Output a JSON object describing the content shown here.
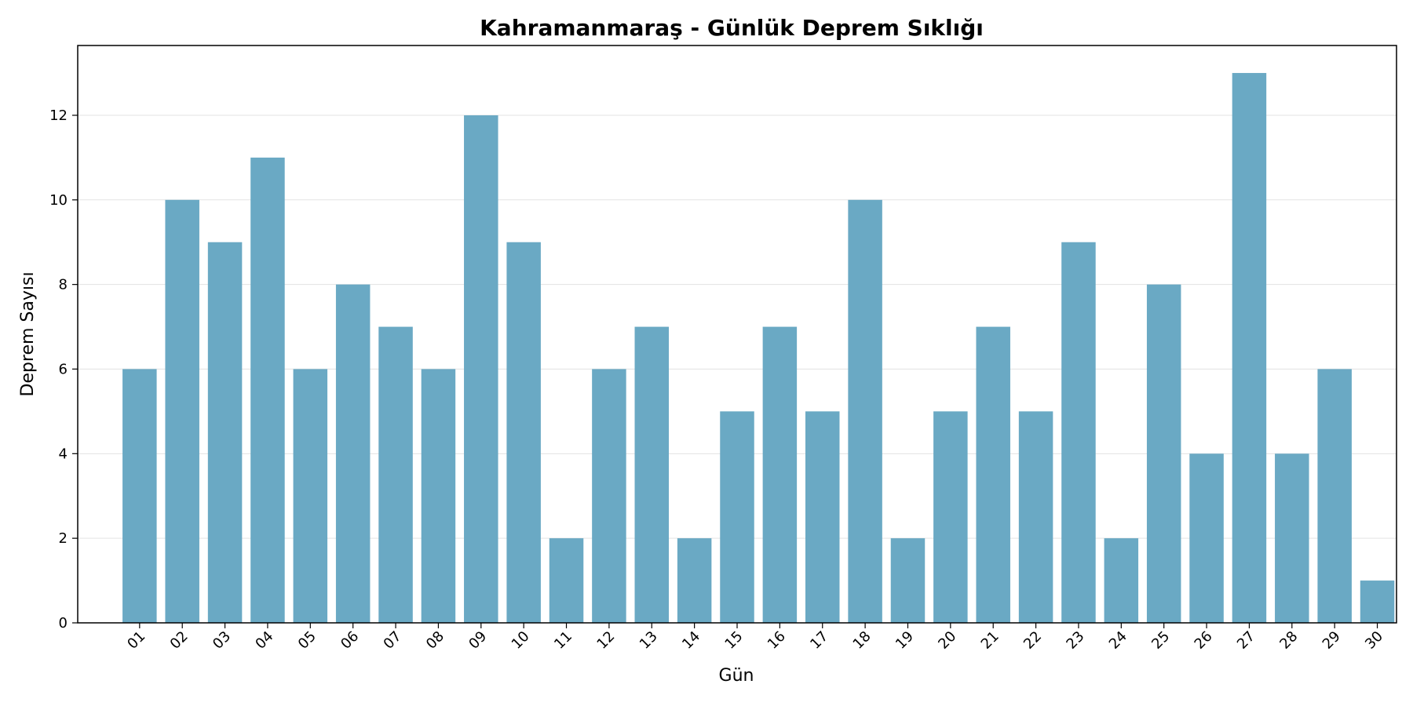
{
  "chart_data": {
    "type": "bar",
    "title": "Kahramanmaraş - Günlük Deprem Sıklığı",
    "xlabel": "Gün",
    "ylabel": "Deprem Sayısı",
    "categories": [
      "01",
      "02",
      "03",
      "04",
      "05",
      "06",
      "07",
      "08",
      "09",
      "10",
      "11",
      "12",
      "13",
      "14",
      "15",
      "16",
      "17",
      "18",
      "19",
      "20",
      "21",
      "22",
      "23",
      "24",
      "25",
      "26",
      "27",
      "28",
      "29",
      "30"
    ],
    "values": [
      6,
      10,
      9,
      11,
      6,
      8,
      7,
      6,
      12,
      9,
      2,
      6,
      7,
      2,
      5,
      7,
      5,
      10,
      2,
      5,
      7,
      5,
      9,
      2,
      8,
      4,
      13,
      4,
      6,
      1
    ],
    "ylim": [
      0,
      13.65
    ],
    "yticks": [
      0,
      2,
      4,
      6,
      8,
      10,
      12
    ],
    "grid": "y",
    "bar_color": "#6aa9c4",
    "legend": "none"
  }
}
